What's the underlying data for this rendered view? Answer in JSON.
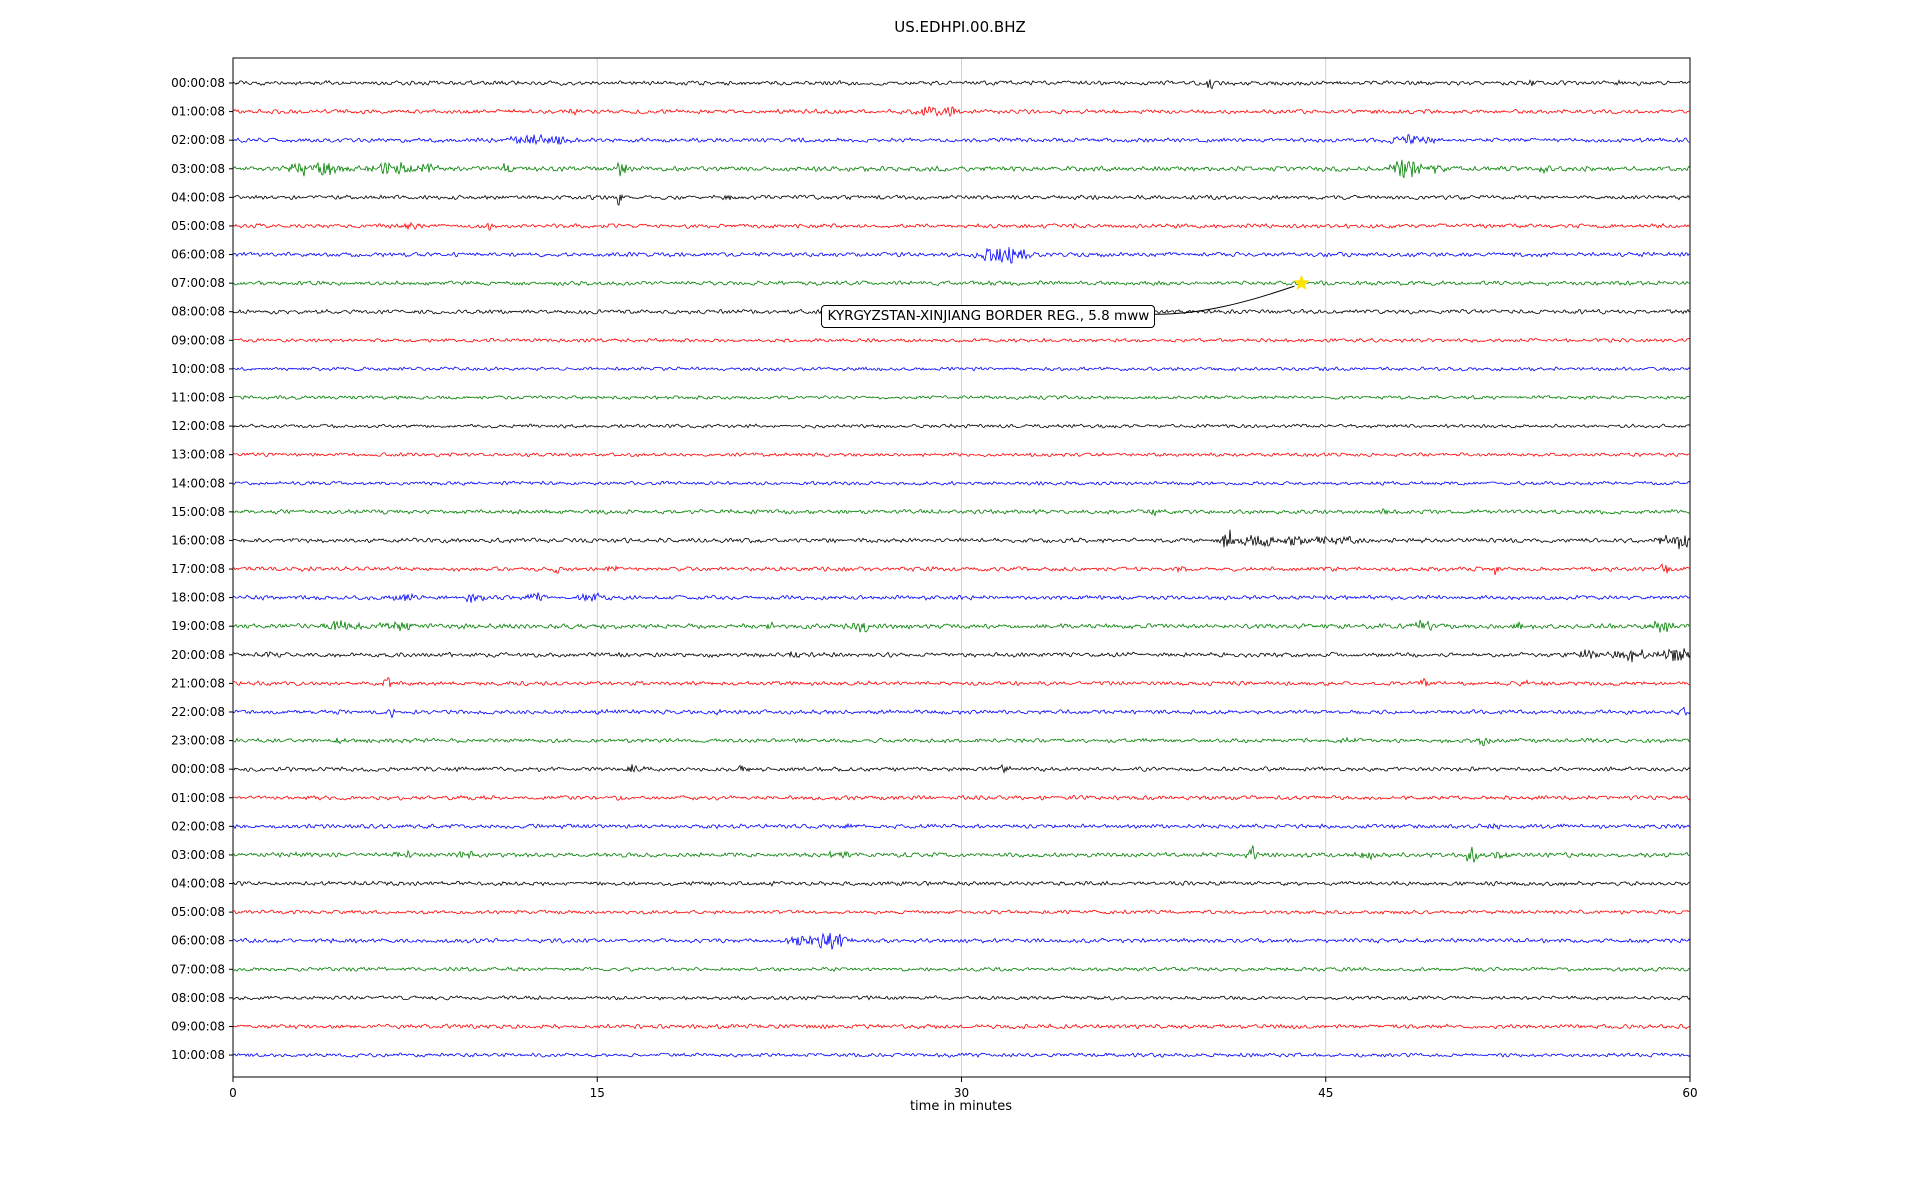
{
  "page": {
    "title": "US.EDHPI.00.BHZ"
  },
  "chart_data": {
    "type": "line",
    "subtype": "seismogram-helicorder",
    "title": "US.EDHPI.00.BHZ",
    "xlabel": "time in minutes",
    "xlim": [
      0,
      60
    ],
    "x_ticks": [
      0,
      15,
      30,
      45,
      60
    ],
    "grid_x": [
      15,
      30,
      45
    ],
    "grid_on": true,
    "legend": "none",
    "colors": {
      "black": "#000000",
      "red": "#ff0000",
      "blue": "#0000ff",
      "green": "#008000"
    },
    "annotation": {
      "text": "KYRGYZSTAN-XINJIANG BORDER REG., 5.8 mww",
      "row_label": "07:00:08",
      "row_index": 7,
      "t_minutes": 44,
      "marker": "star",
      "marker_color": "#ffe100"
    },
    "rows": [
      {
        "label": "00:00:08",
        "color": "black",
        "noise": 1.0,
        "events": [
          [
            40.2,
            5,
            0.12
          ],
          [
            53.5,
            2.5,
            0.1
          ],
          [
            57,
            2,
            0.08
          ]
        ]
      },
      {
        "label": "01:00:08",
        "color": "red",
        "noise": 1.0,
        "events": [
          [
            14,
            2.5,
            0.15
          ],
          [
            28.8,
            5,
            0.35
          ],
          [
            29.6,
            4,
            0.25
          ],
          [
            47,
            2,
            0.1
          ]
        ]
      },
      {
        "label": "02:00:08",
        "color": "blue",
        "noise": 1.0,
        "events": [
          [
            12.2,
            4.5,
            0.5
          ],
          [
            13.4,
            3.5,
            0.3
          ],
          [
            48.3,
            5.5,
            0.45
          ],
          [
            49.2,
            3.5,
            0.25
          ]
        ]
      },
      {
        "label": "03:00:08",
        "color": "green",
        "noise": 1.15,
        "events": [
          [
            2.8,
            5,
            0.5
          ],
          [
            3.9,
            6.5,
            0.5
          ],
          [
            6.4,
            5.5,
            0.6
          ],
          [
            7.8,
            4.5,
            0.4
          ],
          [
            11.3,
            3.5,
            0.25
          ],
          [
            16,
            8.5,
            0.18
          ],
          [
            48.4,
            8,
            0.5
          ],
          [
            49.4,
            4.5,
            0.3
          ],
          [
            54,
            2.5,
            0.2
          ]
        ]
      },
      {
        "label": "04:00:08",
        "color": "black",
        "noise": 1.0,
        "events": [
          [
            15.9,
            7.5,
            0.1
          ],
          [
            20.5,
            2.5,
            0.15
          ]
        ]
      },
      {
        "label": "05:00:08",
        "color": "red",
        "noise": 1.0,
        "events": [
          [
            7.4,
            4.5,
            0.25
          ],
          [
            10.6,
            3.5,
            0.12
          ]
        ]
      },
      {
        "label": "06:00:08",
        "color": "blue",
        "noise": 1.0,
        "events": [
          [
            30.9,
            3.5,
            0.3
          ],
          [
            31.6,
            8.5,
            0.5
          ],
          [
            32.4,
            5,
            0.3
          ]
        ]
      },
      {
        "label": "07:00:08",
        "color": "green",
        "noise": 1.0,
        "events": []
      },
      {
        "label": "08:00:08",
        "color": "black",
        "noise": 1.0,
        "events": []
      },
      {
        "label": "09:00:08",
        "color": "red",
        "noise": 0.85,
        "events": []
      },
      {
        "label": "10:00:08",
        "color": "blue",
        "noise": 0.85,
        "events": []
      },
      {
        "label": "11:00:08",
        "color": "green",
        "noise": 0.85,
        "events": []
      },
      {
        "label": "12:00:08",
        "color": "black",
        "noise": 0.85,
        "events": []
      },
      {
        "label": "13:00:08",
        "color": "red",
        "noise": 0.85,
        "events": []
      },
      {
        "label": "14:00:08",
        "color": "blue",
        "noise": 0.85,
        "events": []
      },
      {
        "label": "15:00:08",
        "color": "green",
        "noise": 1.0,
        "events": [
          [
            38,
            2.5,
            0.3
          ],
          [
            47.5,
            2,
            0.2
          ]
        ]
      },
      {
        "label": "16:00:08",
        "color": "black",
        "noise": 1.05,
        "events": [
          [
            41,
            9.5,
            0.2
          ],
          [
            42.2,
            6,
            0.5
          ],
          [
            43.6,
            5,
            0.4
          ],
          [
            44.8,
            4.5,
            0.35
          ],
          [
            45.8,
            5,
            0.3
          ],
          [
            58.8,
            4.5,
            0.2
          ],
          [
            59.6,
            7,
            0.25
          ]
        ]
      },
      {
        "label": "17:00:08",
        "color": "red",
        "noise": 1.0,
        "events": [
          [
            13.4,
            3.5,
            0.15
          ],
          [
            15.6,
            4.5,
            0.2
          ],
          [
            39,
            3.5,
            0.15
          ],
          [
            52,
            3.5,
            0.12
          ],
          [
            59,
            5,
            0.18
          ]
        ]
      },
      {
        "label": "18:00:08",
        "color": "blue",
        "noise": 1.05,
        "events": [
          [
            7,
            3.5,
            0.4
          ],
          [
            10,
            3.5,
            0.35
          ],
          [
            12.5,
            5,
            0.3
          ],
          [
            14.8,
            5,
            0.35
          ]
        ]
      },
      {
        "label": "19:00:08",
        "color": "green",
        "noise": 1.15,
        "events": [
          [
            4.4,
            4.5,
            0.5
          ],
          [
            6.8,
            4.5,
            0.4
          ],
          [
            22,
            2.5,
            0.25
          ],
          [
            26,
            4.5,
            0.35
          ],
          [
            49,
            3.5,
            0.3
          ],
          [
            53,
            3.5,
            0.25
          ],
          [
            58.8,
            4.5,
            0.35
          ]
        ]
      },
      {
        "label": "20:00:08",
        "color": "black",
        "noise": 1.05,
        "events": [
          [
            1.5,
            3.5,
            0.25
          ],
          [
            23,
            3.5,
            0.15
          ],
          [
            55.8,
            4,
            0.5
          ],
          [
            57.8,
            5.5,
            0.6
          ],
          [
            59.4,
            6.5,
            0.4
          ]
        ]
      },
      {
        "label": "21:00:08",
        "color": "red",
        "noise": 1.0,
        "events": [
          [
            6.4,
            4.5,
            0.15
          ],
          [
            49,
            3.5,
            0.15
          ],
          [
            53.2,
            2.5,
            0.12
          ]
        ]
      },
      {
        "label": "22:00:08",
        "color": "blue",
        "noise": 1.0,
        "events": [
          [
            6.6,
            3.5,
            0.12
          ],
          [
            15.2,
            3.5,
            0.15
          ],
          [
            20,
            2.5,
            0.12
          ],
          [
            59.7,
            3.5,
            0.15
          ]
        ]
      },
      {
        "label": "23:00:08",
        "color": "green",
        "noise": 1.0,
        "events": [
          [
            4.4,
            3.5,
            0.15
          ],
          [
            46,
            2.5,
            0.25
          ],
          [
            51.5,
            4.5,
            0.25
          ]
        ]
      },
      {
        "label": "00:00:08",
        "color": "black",
        "noise": 1.0,
        "events": [
          [
            16.4,
            3,
            0.3
          ],
          [
            21,
            8.5,
            0.1
          ],
          [
            31.8,
            3.5,
            0.25
          ],
          [
            33.4,
            2.5,
            0.15
          ]
        ]
      },
      {
        "label": "01:00:08",
        "color": "red",
        "noise": 1.0,
        "events": [
          [
            15.9,
            4.5,
            0.15
          ]
        ]
      },
      {
        "label": "02:00:08",
        "color": "blue",
        "noise": 1.0,
        "events": [
          [
            25.3,
            2.5,
            0.3
          ],
          [
            52,
            2.5,
            0.25
          ]
        ]
      },
      {
        "label": "03:00:08",
        "color": "green",
        "noise": 1.05,
        "events": [
          [
            2.6,
            4.5,
            0.12
          ],
          [
            7,
            3.5,
            0.25
          ],
          [
            9.6,
            3.5,
            0.25
          ],
          [
            25,
            3.5,
            0.3
          ],
          [
            42,
            8.5,
            0.15
          ],
          [
            46.6,
            3.5,
            0.25
          ],
          [
            51,
            7.5,
            0.2
          ],
          [
            52.2,
            3.5,
            0.25
          ]
        ]
      },
      {
        "label": "04:00:08",
        "color": "black",
        "noise": 1.0,
        "events": [
          [
            5,
            2,
            0.2
          ]
        ]
      },
      {
        "label": "05:00:08",
        "color": "red",
        "noise": 0.9,
        "events": []
      },
      {
        "label": "06:00:08",
        "color": "blue",
        "noise": 1.0,
        "events": [
          [
            23.4,
            5,
            0.4
          ],
          [
            24.4,
            8,
            0.4
          ],
          [
            25.1,
            4.5,
            0.25
          ]
        ]
      },
      {
        "label": "07:00:08",
        "color": "green",
        "noise": 0.9,
        "events": []
      },
      {
        "label": "08:00:08",
        "color": "black",
        "noise": 0.9,
        "events": []
      },
      {
        "label": "09:00:08",
        "color": "red",
        "noise": 1.0,
        "events": []
      },
      {
        "label": "10:00:08",
        "color": "blue",
        "noise": 0.9,
        "events": []
      }
    ]
  }
}
